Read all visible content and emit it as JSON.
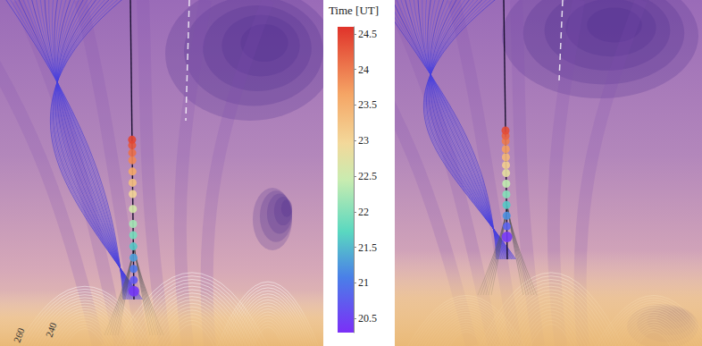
{
  "chart_data": {
    "type": "scatter",
    "colorbar": {
      "label": "Time [UT]",
      "range": [
        20.3,
        24.6
      ],
      "ticks": [
        20.5,
        21,
        21.5,
        22,
        22.5,
        23,
        23.5,
        24,
        24.5
      ]
    },
    "panels": [
      {
        "axis_labels": [
          "260",
          "240"
        ],
        "times": [
          20.4,
          20.7,
          21.0,
          21.3,
          21.6,
          21.9,
          22.2,
          22.6,
          23.0,
          23.3,
          23.6,
          23.9,
          24.1,
          24.3,
          24.45
        ]
      },
      {
        "axis_labels": [],
        "times": [
          20.4,
          20.8,
          21.2,
          21.6,
          22.0,
          22.4,
          22.8,
          23.1,
          23.4,
          23.7,
          24.0,
          24.2,
          24.4
        ]
      }
    ]
  }
}
